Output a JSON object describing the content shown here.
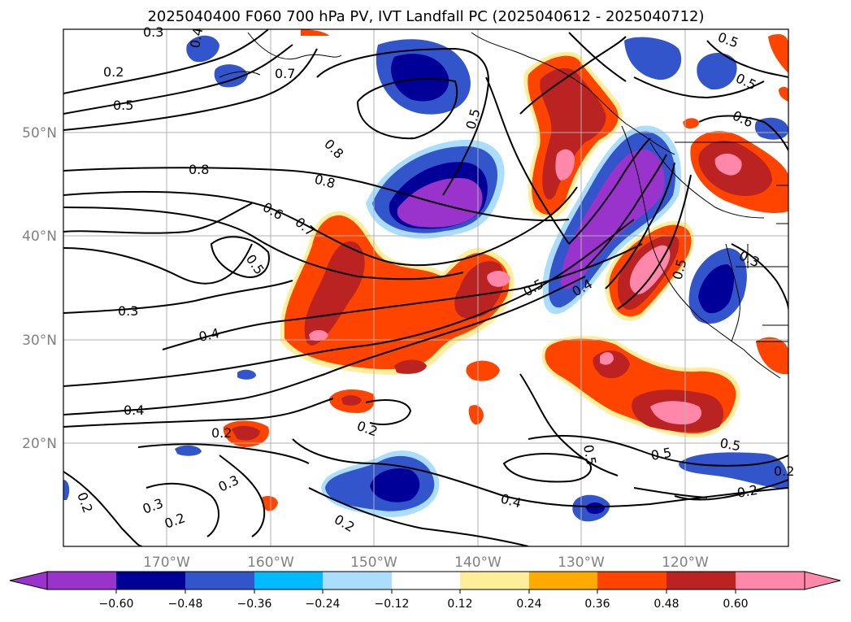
{
  "title": "2025040400 F060 700 hPa PV, IVT Landfall PC (2025040612 - 2025040712)",
  "map": {
    "lat_labels": [
      "50°N",
      "40°N",
      "30°N",
      "20°N"
    ],
    "lon_labels": [
      "170°W",
      "160°W",
      "150°W",
      "140°W",
      "130°W",
      "120°W"
    ],
    "grid": true,
    "contour_labels": [
      "0.3",
      "0.2",
      "0.5",
      "0.7",
      "0.4",
      "0.8",
      "0.8",
      "0.8",
      "0.6",
      "0.7",
      "0.5",
      "0.3",
      "0.4",
      "0.4",
      "0.2",
      "0.2",
      "0.2",
      "0.3",
      "0.3",
      "0.2",
      "0.2",
      "0.5",
      "0.5",
      "0.5",
      "0.5",
      "0.6",
      "0.5",
      "0.4",
      "0.3",
      "0.5",
      "0.5",
      "0.2",
      "0.4",
      "0.2",
      "0.5"
    ],
    "colors": {
      "neg_extreme": "#9933cc",
      "neg_060": "#000099",
      "neg_048": "#3355cc",
      "neg_036": "#00bbff",
      "neg_024": "#aaddff",
      "pos_012": "#ffee99",
      "pos_024": "#ffaa00",
      "pos_036": "#ff4400",
      "pos_048": "#bb2222",
      "pos_060": "#ff88aa"
    }
  },
  "colorbar": {
    "ticks": [
      "−0.60",
      "−0.48",
      "−0.36",
      "−0.24",
      "−0.12",
      "0.12",
      "0.24",
      "0.36",
      "0.48",
      "0.60"
    ],
    "bins": [
      "#9933cc",
      "#000099",
      "#3355cc",
      "#00bbff",
      "#aaddff",
      "#ffffff",
      "#ffee99",
      "#ffaa00",
      "#ff4400",
      "#bb2222",
      "#ff88aa"
    ]
  }
}
